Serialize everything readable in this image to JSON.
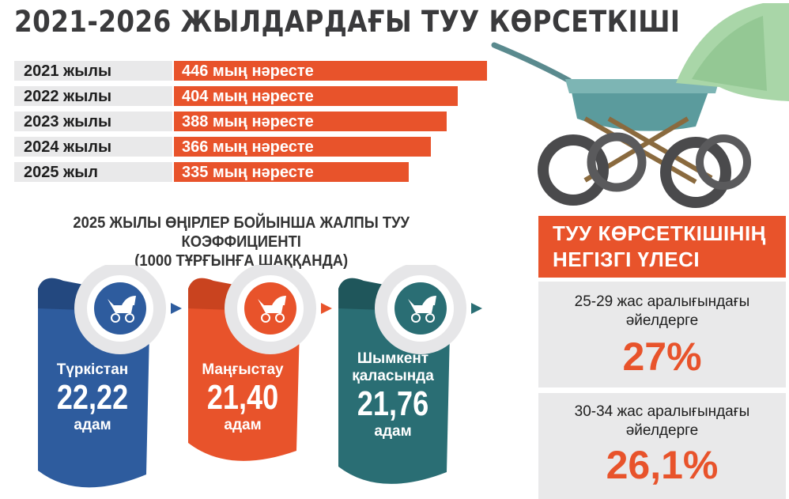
{
  "title": "2021-2026 ЖЫЛДАРДАҒЫ ТУУ КӨРСЕТКІШІ",
  "chart_data": [
    {
      "type": "bar",
      "categories": [
        "2021 жылы",
        "2022 жылы",
        "2023 жылы",
        "2024 жылы",
        "2025 жыл"
      ],
      "values": [
        446,
        404,
        388,
        366,
        335
      ],
      "value_labels": [
        "446 мың нәресте",
        "404 мың нәресте",
        "388 мың нәресте",
        "366 мың нәресте",
        "335 мың нәресте"
      ]
    }
  ],
  "coefficient": {
    "title_line1": "2025 ЖЫЛЫ ӨҢІРЛЕР БОЙЫНША ЖАЛПЫ ТУУ КОЭФФИЦИЕНТІ",
    "title_line2": "(1000 ТҰРҒЫНҒА ШАҚҚАНДА)",
    "regions": [
      {
        "name_line1": "Түркістан",
        "name_line2": "",
        "value": "22,22",
        "unit": "адам",
        "color": "#2e5c9e"
      },
      {
        "name_line1": "Маңғыстау",
        "name_line2": "",
        "value": "21,40",
        "unit": "адам",
        "color": "#e8532b"
      },
      {
        "name_line1": "Шымкент",
        "name_line2": "қаласында",
        "value": "21,76",
        "unit": "адам",
        "color": "#2a6e74"
      }
    ]
  },
  "shares": {
    "title_line1": "ТУУ КӨРСЕТКІШІНІҢ",
    "title_line2": "НЕГІЗГІ ҮЛЕСІ",
    "items": [
      {
        "label_line1": "25-29 жас аралығындағы",
        "label_line2": "әйелдерге",
        "value": "27%"
      },
      {
        "label_line1": "30-34 жас аралығындағы",
        "label_line2": "әйелдерге",
        "value": "26,1%"
      }
    ]
  },
  "colors": {
    "accent": "#e8532b",
    "label_bg": "#e9e9ea",
    "title": "#3a3a3c"
  }
}
